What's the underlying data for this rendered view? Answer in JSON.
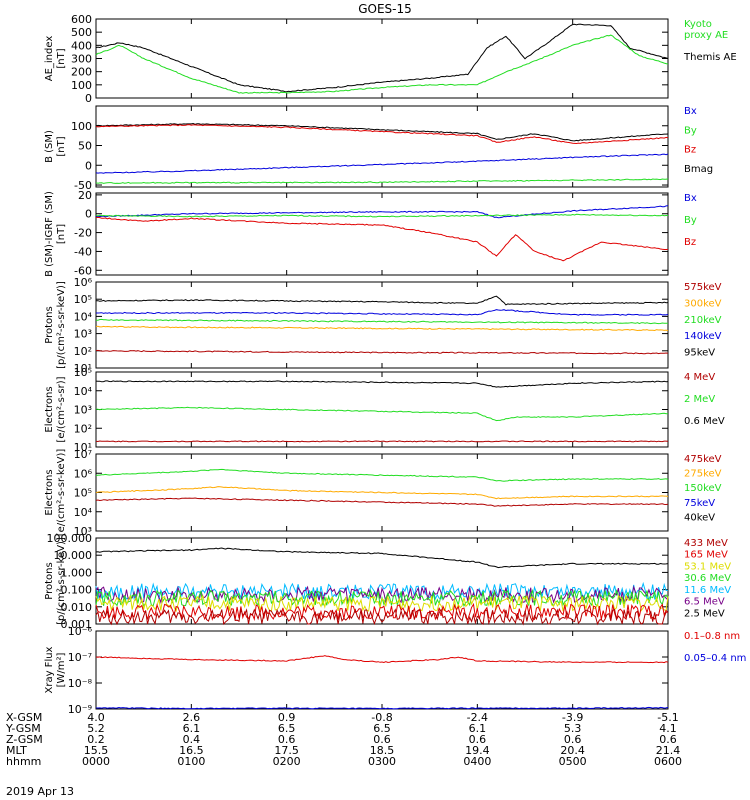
{
  "title": "GOES-15",
  "date": "2019 Apr 13",
  "colors": {
    "black": "#000000",
    "red": "#e00000",
    "green": "#22dd22",
    "blue": "#0000dd",
    "orange": "#ffaa00",
    "maroon": "#880000",
    "cyan": "#00bbff",
    "yellow": "#dddd00",
    "purple": "#770088",
    "darkred": "#b00000"
  },
  "xaxis": {
    "ticks": [
      "0000",
      "0100",
      "0200",
      "0300",
      "0400",
      "0500",
      "0600"
    ],
    "rows": [
      {
        "label": "X-GSM",
        "values": [
          "4.0",
          "2.6",
          "0.9",
          "-0.8",
          "-2.4",
          "-3.9",
          "-5.1"
        ]
      },
      {
        "label": "Y-GSM",
        "values": [
          "5.2",
          "6.1",
          "6.5",
          "6.5",
          "6.1",
          "5.3",
          "4.1"
        ]
      },
      {
        "label": "Z-GSM",
        "values": [
          "0.2",
          "0.4",
          "0.6",
          "0.6",
          "0.6",
          "0.6",
          "0.6"
        ]
      },
      {
        "label": "MLT",
        "values": [
          "15.5",
          "16.5",
          "17.5",
          "18.5",
          "19.4",
          "20.4",
          "21.4"
        ]
      },
      {
        "label": "hhmm",
        "values": [
          "0000",
          "0100",
          "0200",
          "0300",
          "0400",
          "0500",
          "0600"
        ]
      }
    ]
  },
  "chart_data": [
    {
      "type": "line",
      "ylabel": "AE_index\n[nT]",
      "scale": "linear",
      "ylim": [
        0,
        600
      ],
      "ticks": [
        "0",
        "100",
        "200",
        "300",
        "400",
        "500",
        "600"
      ],
      "legend": [
        {
          "name": "Kyoto\nproxy AE",
          "color": "green"
        },
        {
          "name": "Themis AE",
          "color": "black"
        }
      ],
      "series": [
        {
          "name": "Themis AE",
          "color": "black",
          "x": [
            0,
            0.25,
            0.5,
            1,
            1.5,
            2,
            2.5,
            3,
            3.5,
            3.9,
            4.1,
            4.3,
            4.5,
            4.7,
            5,
            5.4,
            5.6,
            6
          ],
          "y": [
            380,
            420,
            380,
            240,
            100,
            50,
            80,
            120,
            150,
            180,
            380,
            470,
            300,
            400,
            560,
            550,
            380,
            300
          ]
        },
        {
          "name": "Kyoto proxy AE",
          "color": "green",
          "x": [
            0,
            0.25,
            0.5,
            1,
            1.5,
            2,
            2.5,
            3,
            3.5,
            4,
            4.3,
            4.6,
            5,
            5.4,
            5.7,
            6
          ],
          "y": [
            330,
            400,
            300,
            150,
            40,
            40,
            50,
            80,
            100,
            100,
            200,
            280,
            400,
            480,
            320,
            260
          ]
        }
      ]
    },
    {
      "type": "line",
      "ylabel": "B (SM)\n[nT]",
      "scale": "linear",
      "ylim": [
        -55,
        150
      ],
      "ticks": [
        "-50",
        "0",
        "50",
        "100"
      ],
      "legend": [
        {
          "name": "Bx",
          "color": "blue"
        },
        {
          "name": "By",
          "color": "green"
        },
        {
          "name": "Bz",
          "color": "red"
        },
        {
          "name": "Bmag",
          "color": "black"
        }
      ],
      "series": [
        {
          "name": "Bmag",
          "color": "black",
          "x": [
            0,
            1,
            2,
            3,
            4,
            4.2,
            4.6,
            5,
            6
          ],
          "y": [
            100,
            105,
            100,
            90,
            80,
            65,
            80,
            62,
            80
          ]
        },
        {
          "name": "Bz",
          "color": "red",
          "x": [
            0,
            1,
            2,
            3,
            4,
            4.2,
            4.6,
            5,
            6
          ],
          "y": [
            98,
            102,
            96,
            85,
            75,
            58,
            72,
            55,
            70
          ]
        },
        {
          "name": "Bx",
          "color": "blue",
          "x": [
            0,
            1,
            2,
            3,
            4,
            5,
            6
          ],
          "y": [
            -20,
            -14,
            -6,
            2,
            10,
            20,
            28
          ]
        },
        {
          "name": "By",
          "color": "green",
          "x": [
            0,
            1,
            2,
            3,
            4,
            5,
            6
          ],
          "y": [
            -45,
            -44,
            -44,
            -43,
            -40,
            -38,
            -35
          ]
        }
      ]
    },
    {
      "type": "line",
      "ylabel": "B (SM)-IGRF (SM)\n[nT]",
      "scale": "linear",
      "ylim": [
        -65,
        22
      ],
      "ticks": [
        "-60",
        "-40",
        "-20",
        "0",
        "20"
      ],
      "legend": [
        {
          "name": "Bx",
          "color": "blue"
        },
        {
          "name": "By",
          "color": "green"
        },
        {
          "name": "Bz",
          "color": "red"
        }
      ],
      "series": [
        {
          "name": "Bx",
          "color": "blue",
          "x": [
            0,
            1,
            2,
            3,
            4,
            4.2,
            5,
            6
          ],
          "y": [
            -3,
            0,
            1,
            2,
            2,
            -4,
            3,
            8
          ]
        },
        {
          "name": "By",
          "color": "green",
          "x": [
            0,
            1,
            2,
            3,
            4,
            5,
            6
          ],
          "y": [
            -2,
            -3,
            -2,
            -3,
            -2,
            -1,
            -2
          ]
        },
        {
          "name": "Bz",
          "color": "red",
          "x": [
            0,
            0.5,
            1,
            2,
            3,
            3.5,
            4,
            4.2,
            4.4,
            4.6,
            4.9,
            5.3,
            6
          ],
          "y": [
            -4,
            -8,
            -5,
            -10,
            -12,
            -20,
            -30,
            -45,
            -22,
            -40,
            -50,
            -30,
            -38
          ]
        }
      ]
    },
    {
      "type": "line",
      "ylabel": "Protons\n[p/(cm²-s-sr-keV)]",
      "scale": "log",
      "ylim": [
        1,
        6
      ],
      "ticks": [
        "10¹",
        "10²",
        "10³",
        "10⁴",
        "10⁵",
        "10⁶"
      ],
      "legend": [
        {
          "name": "575keV",
          "color": "darkred"
        },
        {
          "name": "300keV",
          "color": "orange"
        },
        {
          "name": "210keV",
          "color": "green"
        },
        {
          "name": "140keV",
          "color": "blue"
        },
        {
          "name": "95keV",
          "color": "black"
        }
      ],
      "series": [
        {
          "name": "95keV",
          "color": "black",
          "x": [
            0,
            1,
            2,
            3,
            4,
            4.2,
            4.3,
            5,
            6
          ],
          "y": [
            4.9,
            4.95,
            4.9,
            4.85,
            4.75,
            5.2,
            4.7,
            4.75,
            4.8
          ]
        },
        {
          "name": "140keV",
          "color": "blue",
          "x": [
            0,
            1,
            2,
            3,
            4,
            4.2,
            5,
            6
          ],
          "y": [
            4.2,
            4.2,
            4.2,
            4.15,
            4.1,
            4.4,
            4.1,
            4.1
          ]
        },
        {
          "name": "210keV",
          "color": "green",
          "x": [
            0,
            3,
            6
          ],
          "y": [
            3.8,
            3.7,
            3.6
          ]
        },
        {
          "name": "300keV",
          "color": "orange",
          "x": [
            0,
            3,
            6
          ],
          "y": [
            3.4,
            3.3,
            3.2
          ]
        },
        {
          "name": "575keV",
          "color": "darkred",
          "x": [
            0,
            3,
            6
          ],
          "y": [
            2.0,
            1.9,
            1.85
          ]
        }
      ]
    },
    {
      "type": "line",
      "ylabel": "Electrons\n[e/(cm²-s-sr)]",
      "scale": "log",
      "ylim": [
        1,
        5
      ],
      "ticks": [
        "10¹",
        "10²",
        "10³",
        "10⁴",
        "10⁵"
      ],
      "legend": [
        {
          "name": "4 MeV",
          "color": "darkred"
        },
        {
          "name": "2 MeV",
          "color": "green"
        },
        {
          "name": "0.6 MeV",
          "color": "black"
        }
      ],
      "series": [
        {
          "name": "0.6 MeV",
          "color": "black",
          "x": [
            0,
            2,
            4,
            4.2,
            5,
            6
          ],
          "y": [
            4.5,
            4.5,
            4.4,
            4.2,
            4.4,
            4.5
          ]
        },
        {
          "name": "2 MeV",
          "color": "green",
          "x": [
            0,
            1,
            2,
            3,
            4,
            4.2,
            4.4,
            5,
            6
          ],
          "y": [
            3.0,
            3.1,
            3.0,
            2.9,
            2.8,
            2.4,
            2.6,
            2.6,
            2.8
          ]
        },
        {
          "name": "4 MeV",
          "color": "darkred",
          "x": [
            0,
            6
          ],
          "y": [
            1.3,
            1.3
          ]
        }
      ]
    },
    {
      "type": "line",
      "ylabel": "Electrons\n[e/(cm²-s-sr-keV)]",
      "scale": "log",
      "ylim": [
        3,
        7
      ],
      "ticks": [
        "10³",
        "10⁴",
        "10⁵",
        "10⁶",
        "10⁷"
      ],
      "legend": [
        {
          "name": "475keV",
          "color": "darkred"
        },
        {
          "name": "275keV",
          "color": "orange"
        },
        {
          "name": "150keV",
          "color": "green"
        },
        {
          "name": "75keV",
          "color": "blue"
        },
        {
          "name": "40keV",
          "color": "black"
        }
      ],
      "series": [
        {
          "name": "150keV",
          "color": "green",
          "x": [
            0,
            1,
            1.3,
            2,
            3,
            4,
            4.2,
            5,
            6
          ],
          "y": [
            5.9,
            6.1,
            6.2,
            6.0,
            5.9,
            5.8,
            5.6,
            5.7,
            5.7
          ]
        },
        {
          "name": "275keV",
          "color": "orange",
          "x": [
            0,
            1,
            1.3,
            2,
            3,
            4,
            4.2,
            5,
            6
          ],
          "y": [
            5.0,
            5.2,
            5.3,
            5.1,
            5.0,
            4.9,
            4.7,
            4.8,
            4.8
          ]
        },
        {
          "name": "475keV",
          "color": "darkred",
          "x": [
            0,
            1,
            2,
            3,
            4,
            4.2,
            5,
            6
          ],
          "y": [
            4.6,
            4.7,
            4.6,
            4.5,
            4.4,
            4.3,
            4.4,
            4.4
          ]
        }
      ]
    },
    {
      "type": "line",
      "ylabel": "Protons\n[p/(cm²-s-sr-keV)]",
      "scale": "log",
      "ylim": [
        -3,
        2
      ],
      "ticks": [
        "0.001",
        "0.010",
        "0.100",
        "1.000",
        "10.000",
        "100.000"
      ],
      "legend": [
        {
          "name": "433 MeV",
          "color": "darkred"
        },
        {
          "name": "165 MeV",
          "color": "red"
        },
        {
          "name": "53.1 MeV",
          "color": "yellow"
        },
        {
          "name": "30.6 MeV",
          "color": "green"
        },
        {
          "name": "11.6 MeV",
          "color": "cyan"
        },
        {
          "name": "6.5 MeV",
          "color": "purple"
        },
        {
          "name": "2.5 MeV",
          "color": "black"
        }
      ],
      "series": [
        {
          "name": "2.5 MeV",
          "color": "black",
          "x": [
            0,
            1,
            1.3,
            2,
            3,
            4,
            4.2,
            5,
            6
          ],
          "y": [
            1.2,
            1.3,
            1.4,
            1.2,
            1.1,
            0.6,
            0.3,
            0.5,
            0.5
          ]
        },
        {
          "name": "11.6 MeV",
          "color": "cyan",
          "x": [
            0,
            6
          ],
          "y": [
            -1.1,
            -1.1
          ]
        },
        {
          "name": "6.5 MeV",
          "color": "purple",
          "x": [
            0,
            6
          ],
          "y": [
            -1.3,
            -1.3
          ]
        },
        {
          "name": "30.6 MeV",
          "color": "green",
          "x": [
            0,
            6
          ],
          "y": [
            -1.5,
            -1.5
          ]
        },
        {
          "name": "53.1 MeV",
          "color": "yellow",
          "x": [
            0,
            6
          ],
          "y": [
            -1.8,
            -1.8
          ]
        },
        {
          "name": "165 MeV",
          "color": "red",
          "x": [
            0,
            6
          ],
          "y": [
            -2.3,
            -2.3
          ]
        },
        {
          "name": "433 MeV",
          "color": "darkred",
          "x": [
            0,
            6
          ],
          "y": [
            -2.6,
            -2.6
          ]
        }
      ]
    },
    {
      "type": "line",
      "ylabel": "Xray Flux\n[W/m²]",
      "scale": "log",
      "ylim": [
        -9,
        -6
      ],
      "ticks": [
        "10⁻⁹",
        "10⁻⁸",
        "10⁻⁷",
        "10⁻⁶"
      ],
      "legend": [
        {
          "name": "0.1–0.8 nm",
          "color": "red"
        },
        {
          "name": "0.05–0.4 nm",
          "color": "blue"
        }
      ],
      "series": [
        {
          "name": "0.1–0.8 nm",
          "color": "red",
          "x": [
            0,
            1,
            2,
            2.4,
            2.6,
            3,
            3.6,
            3.8,
            4,
            5,
            6
          ],
          "y": [
            -7.0,
            -7.1,
            -7.15,
            -6.95,
            -7.1,
            -7.2,
            -7.1,
            -7.0,
            -7.15,
            -7.2,
            -7.2
          ]
        },
        {
          "name": "0.05–0.4 nm",
          "color": "blue",
          "x": [
            0,
            1,
            2,
            3,
            4,
            5,
            6
          ],
          "y": [
            -8.95,
            -8.98,
            -8.97,
            -8.98,
            -8.97,
            -8.97,
            -8.95
          ]
        }
      ]
    }
  ]
}
